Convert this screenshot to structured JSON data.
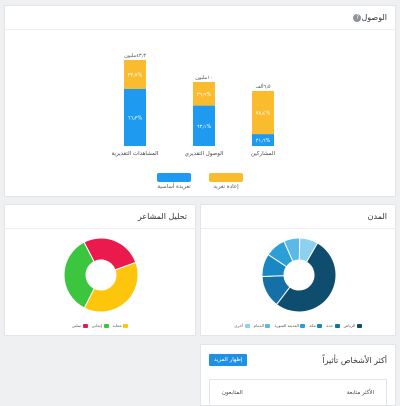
{
  "reach": {
    "title": "الوصول",
    "help_icon": "question-circle-icon",
    "chart_data": {
      "type": "bar",
      "stacked": true,
      "categories": [
        "المشاهدات التقديرية",
        "الوصول التقديري",
        "المشاركين"
      ],
      "totals": [
        "٤٣٫٣مليون",
        "١٠مليون",
        "٦٫٥ألف"
      ],
      "series": [
        {
          "name": "تغريدة أساسية",
          "color": "#1e9bf0",
          "values": [
            66.3,
            63.1,
            21.6
          ],
          "labels": [
            "%٦٦٫٣",
            "%٦٣٫١",
            "%٢١٫٦"
          ]
        },
        {
          "name": "إعادة تغريد",
          "color": "#fbbb2e",
          "values": [
            33.7,
            36.9,
            78.4
          ],
          "labels": [
            "%٣٣٫٧",
            "%٣٦٫٩",
            "%٧٨٫٤"
          ]
        }
      ]
    }
  },
  "cities": {
    "title": "المدن",
    "chart_data": {
      "type": "pie",
      "categories": [
        "الرياض",
        "جدة",
        "مكة",
        "المدينة المنورة",
        "الدمام",
        "أخرى"
      ],
      "values": [
        52,
        14,
        10,
        9,
        7,
        8
      ],
      "colors": [
        "#0f4d6e",
        "#1570a6",
        "#1a87c5",
        "#2c9fd8",
        "#5ab9e6",
        "#8dd0f0"
      ]
    }
  },
  "sentiment": {
    "title": "تحليل المشاعر",
    "chart_data": {
      "type": "pie",
      "categories": [
        "محايد",
        "إيجابي",
        "سلبي"
      ],
      "values": [
        38,
        35,
        27
      ],
      "colors": [
        "#fdc50c",
        "#3cc640",
        "#ea1a4e"
      ]
    }
  },
  "influencers": {
    "title": "أكثر الأشخاص تأثيراً",
    "more_button": "إظهار المزيد",
    "col_top": "الأكثر متابعة",
    "col_followers": "المتابعون"
  }
}
